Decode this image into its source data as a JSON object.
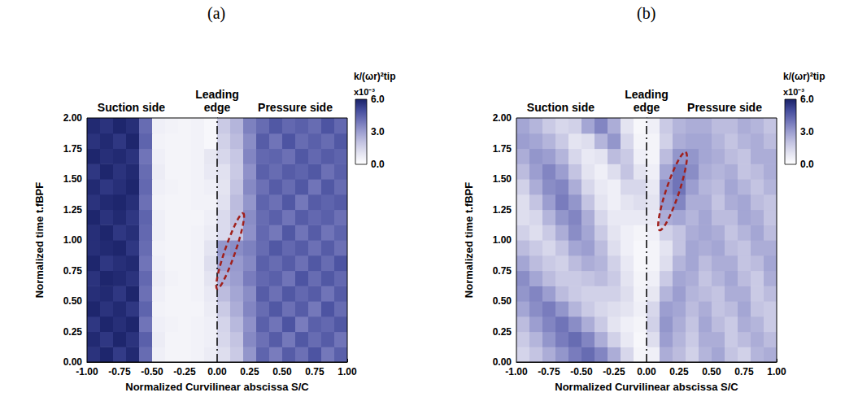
{
  "chart_data": [
    {
      "type": "heatmap",
      "title": "(a)",
      "annotations": [
        "Suction side",
        "Leading edge",
        "Pressure side"
      ],
      "xlabel": "Normalized Curvilinear abscissa S/C",
      "ylabel": "Normalized time t.fBPF",
      "xlim": [
        -1,
        1
      ],
      "ylim": [
        0,
        2
      ],
      "xticks": [
        {
          "value": -1,
          "label": "-1.00"
        },
        {
          "value": -0.75,
          "label": "-0.75"
        },
        {
          "value": -0.5,
          "label": "-0.50"
        },
        {
          "value": -0.25,
          "label": "-0.25"
        },
        {
          "value": 0,
          "label": "0.00"
        },
        {
          "value": 0.25,
          "label": "0.25"
        },
        {
          "value": 0.5,
          "label": "0.50"
        },
        {
          "value": 0.75,
          "label": "0.75"
        },
        {
          "value": 1,
          "label": "1.00"
        }
      ],
      "yticks": [
        {
          "value": 0,
          "label": "0.00"
        },
        {
          "value": 0.25,
          "label": "0.25"
        },
        {
          "value": 0.5,
          "label": "0.50"
        },
        {
          "value": 0.75,
          "label": "0.75"
        },
        {
          "value": 1,
          "label": "1.00"
        },
        {
          "value": 1.25,
          "label": "1.25"
        },
        {
          "value": 1.5,
          "label": "1.50"
        },
        {
          "value": 1.75,
          "label": "1.75"
        },
        {
          "value": 2,
          "label": "2.00"
        }
      ],
      "grid": false,
      "cells": {
        "x_bins": [
          -1,
          -0.9,
          -0.8,
          -0.7,
          -0.6,
          -0.5,
          -0.4,
          -0.3,
          -0.2,
          -0.1,
          0,
          0.1,
          0.2,
          0.3,
          0.4,
          0.5,
          0.6,
          0.7,
          0.8,
          0.9,
          1
        ],
        "y_bins": [
          0,
          0.125,
          0.25,
          0.375,
          0.5,
          0.625,
          0.75,
          0.875,
          1,
          1.125,
          1.25,
          1.375,
          1.5,
          1.625,
          1.75,
          1.875,
          2
        ],
        "values": [
          [
            5.6,
            5.9,
            5.4,
            5.8,
            4.2,
            0.6,
            0.4,
            0.4,
            0.5,
            0.7,
            1.2,
            1.8,
            3.2,
            4.4,
            3.8,
            4.6,
            4.1,
            4.8,
            3.9,
            4.5
          ],
          [
            5.8,
            5.5,
            5.9,
            5.6,
            4.5,
            0.7,
            0.4,
            0.4,
            0.5,
            0.6,
            1.4,
            2.0,
            3.5,
            4.1,
            4.6,
            3.9,
            4.7,
            4.2,
            4.6,
            4.0
          ],
          [
            5.5,
            5.9,
            5.7,
            5.9,
            4.0,
            0.6,
            0.5,
            0.4,
            0.5,
            0.6,
            1.5,
            2.3,
            3.3,
            4.5,
            4.0,
            4.8,
            3.8,
            4.5,
            4.3,
            4.7
          ],
          [
            5.9,
            5.6,
            5.8,
            5.5,
            4.4,
            0.5,
            0.4,
            0.4,
            0.4,
            0.7,
            1.8,
            2.6,
            3.6,
            4.2,
            4.7,
            4.1,
            4.6,
            3.9,
            4.8,
            4.2
          ],
          [
            5.7,
            5.8,
            5.5,
            5.9,
            4.1,
            0.6,
            0.4,
            0.4,
            0.5,
            0.8,
            2.2,
            2.8,
            3.4,
            4.6,
            4.1,
            4.7,
            4.3,
            4.6,
            4.0,
            4.6
          ],
          [
            5.6,
            5.9,
            5.8,
            5.6,
            4.3,
            0.7,
            0.5,
            0.4,
            0.5,
            1.0,
            2.6,
            3.0,
            3.8,
            4.3,
            4.5,
            4.0,
            4.8,
            4.2,
            4.7,
            4.3
          ],
          [
            5.9,
            5.5,
            5.7,
            5.8,
            4.0,
            0.6,
            0.4,
            0.4,
            0.5,
            1.2,
            3.0,
            3.1,
            3.5,
            4.5,
            4.2,
            4.6,
            4.1,
            4.7,
            4.2,
            4.8
          ],
          [
            5.7,
            5.8,
            5.9,
            5.5,
            4.2,
            0.5,
            0.4,
            0.4,
            0.5,
            1.0,
            3.2,
            3.4,
            3.7,
            4.2,
            4.7,
            4.3,
            4.6,
            4.1,
            4.6,
            4.1
          ],
          [
            5.7,
            5.9,
            5.5,
            5.7,
            4.3,
            0.6,
            0.4,
            0.4,
            0.5,
            0.7,
            1.3,
            1.9,
            3.3,
            4.3,
            3.9,
            4.7,
            4.0,
            4.6,
            4.0,
            4.4
          ],
          [
            5.9,
            5.6,
            5.8,
            5.5,
            4.4,
            0.6,
            0.4,
            0.4,
            0.4,
            0.6,
            1.3,
            2.1,
            3.4,
            4.2,
            4.5,
            4.0,
            4.6,
            4.3,
            4.5,
            4.1
          ],
          [
            5.6,
            5.8,
            5.9,
            5.7,
            4.1,
            0.5,
            0.4,
            0.4,
            0.5,
            0.5,
            1.1,
            2.2,
            3.2,
            4.4,
            4.1,
            4.7,
            3.9,
            4.6,
            4.4,
            4.6
          ],
          [
            5.8,
            5.5,
            5.7,
            5.9,
            4.3,
            0.6,
            0.5,
            0.4,
            0.5,
            0.6,
            1.0,
            2.0,
            3.5,
            4.1,
            4.6,
            4.2,
            4.7,
            4.0,
            4.7,
            4.2
          ],
          [
            5.5,
            5.9,
            5.6,
            5.8,
            4.2,
            0.7,
            0.4,
            0.4,
            0.5,
            0.8,
            1.1,
            1.8,
            3.3,
            4.5,
            4.2,
            4.6,
            4.4,
            4.7,
            4.1,
            4.5
          ],
          [
            5.9,
            5.7,
            5.8,
            5.6,
            4.0,
            0.6,
            0.4,
            0.4,
            0.5,
            0.9,
            1.4,
            1.9,
            3.6,
            4.3,
            4.4,
            4.1,
            4.7,
            4.3,
            4.6,
            4.4
          ],
          [
            5.6,
            5.8,
            5.5,
            5.9,
            4.4,
            0.5,
            0.4,
            0.4,
            0.5,
            0.3,
            1.6,
            2.2,
            3.4,
            4.6,
            4.0,
            4.8,
            4.2,
            4.5,
            4.2,
            4.7
          ],
          [
            5.8,
            5.6,
            5.9,
            5.7,
            4.2,
            0.6,
            0.5,
            0.4,
            0.5,
            0.3,
            1.8,
            2.4,
            3.7,
            4.2,
            4.7,
            4.3,
            4.5,
            4.2,
            4.8,
            4.3
          ]
        ]
      },
      "colorbar": {
        "title": "k/(ωr)²tip",
        "exponent_label": "x10⁻³",
        "range": [
          0,
          6
        ],
        "ticks": [
          {
            "value": 0,
            "label": "0.0"
          },
          {
            "value": 3,
            "label": "3.0"
          },
          {
            "value": 6,
            "label": "6.0"
          }
        ],
        "colors": [
          "#ffffff",
          "#e4e4f1",
          "#c4c4e2",
          "#9c9ed0",
          "#7074b8",
          "#444c9c",
          "#1a2268"
        ]
      },
      "leading_edge": {
        "x": 0,
        "line_style": "dashdot",
        "color": "#000000"
      },
      "ellipse": {
        "from": [
          0.0,
          0.6
        ],
        "to": [
          0.2,
          1.22
        ],
        "half_width": 0.04,
        "line_style": "dashed",
        "color": "#a0201c"
      }
    },
    {
      "type": "heatmap",
      "title": "(b)",
      "annotations": [
        "Suction side",
        "Leading edge",
        "Pressure side"
      ],
      "xlabel": "Normalized Curvilinear abscissa S/C",
      "ylabel": "Normalized time t.fBPF",
      "xlim": [
        -1,
        1
      ],
      "ylim": [
        0,
        2
      ],
      "xticks": [
        {
          "value": -1,
          "label": "-1.00"
        },
        {
          "value": -0.75,
          "label": "-0.75"
        },
        {
          "value": -0.5,
          "label": "-0.50"
        },
        {
          "value": -0.25,
          "label": "-0.25"
        },
        {
          "value": 0,
          "label": "0.00"
        },
        {
          "value": 0.25,
          "label": "0.25"
        },
        {
          "value": 0.5,
          "label": "0.50"
        },
        {
          "value": 0.75,
          "label": "0.75"
        },
        {
          "value": 1,
          "label": "1.00"
        }
      ],
      "yticks": [
        {
          "value": 0,
          "label": "0.00"
        },
        {
          "value": 0.25,
          "label": "0.25"
        },
        {
          "value": 0.5,
          "label": "0.50"
        },
        {
          "value": 0.75,
          "label": "0.75"
        },
        {
          "value": 1,
          "label": "1.00"
        },
        {
          "value": 1.25,
          "label": "1.25"
        },
        {
          "value": 1.5,
          "label": "1.50"
        },
        {
          "value": 1.75,
          "label": "1.75"
        },
        {
          "value": 2,
          "label": "2.00"
        }
      ],
      "grid": false,
      "cells": {
        "x_bins": [
          -1,
          -0.9,
          -0.8,
          -0.7,
          -0.6,
          -0.5,
          -0.4,
          -0.3,
          -0.2,
          -0.1,
          0,
          0.1,
          0.2,
          0.3,
          0.4,
          0.5,
          0.6,
          0.7,
          0.8,
          0.9,
          1
        ],
        "y_bins": [
          0,
          0.125,
          0.25,
          0.375,
          0.5,
          0.625,
          0.75,
          0.875,
          1,
          1.125,
          1.25,
          1.375,
          1.5,
          1.625,
          1.75,
          1.875,
          2
        ],
        "values": [
          [
            1.5,
            2.0,
            2.6,
            3.2,
            3.8,
            4.2,
            3.6,
            2.6,
            1.4,
            0.4,
            0.6,
            2.6,
            2.2,
            1.6,
            2.4,
            2.8,
            2.0,
            1.6,
            2.4,
            2.6
          ],
          [
            1.8,
            2.4,
            3.2,
            3.8,
            4.2,
            3.6,
            2.6,
            1.6,
            0.8,
            0.3,
            1.2,
            3.0,
            2.4,
            1.8,
            2.6,
            2.6,
            1.8,
            2.2,
            2.6,
            2.2
          ],
          [
            2.2,
            3.0,
            3.6,
            4.0,
            3.4,
            2.6,
            1.8,
            1.0,
            0.6,
            0.4,
            1.6,
            3.2,
            2.6,
            2.0,
            2.8,
            2.2,
            1.8,
            2.6,
            2.4,
            1.8
          ],
          [
            2.8,
            3.4,
            3.8,
            3.2,
            2.4,
            1.8,
            1.4,
            1.2,
            1.0,
            0.6,
            1.4,
            3.0,
            2.8,
            2.2,
            2.6,
            2.0,
            2.2,
            2.8,
            2.0,
            1.8
          ],
          [
            3.2,
            3.6,
            3.0,
            2.2,
            1.8,
            1.6,
            1.6,
            1.6,
            1.2,
            0.5,
            0.9,
            2.4,
            3.0,
            2.4,
            2.2,
            2.0,
            2.6,
            2.6,
            1.8,
            2.2
          ],
          [
            3.4,
            2.8,
            2.2,
            1.8,
            1.8,
            2.0,
            2.2,
            1.8,
            1.0,
            0.4,
            0.6,
            1.8,
            2.8,
            2.6,
            2.0,
            2.4,
            2.8,
            2.2,
            1.8,
            2.6
          ],
          [
            2.8,
            2.2,
            1.8,
            1.6,
            2.2,
            2.6,
            2.4,
            1.6,
            0.8,
            0.3,
            0.4,
            1.2,
            2.4,
            2.8,
            2.2,
            2.6,
            2.6,
            2.0,
            2.2,
            2.8
          ],
          [
            2.2,
            1.8,
            1.4,
            2.0,
            2.8,
            3.0,
            2.2,
            1.2,
            0.6,
            0.3,
            0.4,
            1.0,
            2.0,
            2.8,
            2.6,
            2.8,
            2.2,
            2.0,
            2.6,
            2.6
          ],
          [
            1.6,
            1.2,
            1.8,
            2.6,
            3.4,
            2.8,
            1.8,
            1.0,
            0.6,
            0.4,
            0.6,
            1.6,
            2.0,
            2.6,
            2.8,
            2.6,
            2.0,
            2.4,
            2.8,
            2.2
          ],
          [
            1.2,
            1.4,
            2.4,
            3.2,
            3.6,
            2.6,
            1.4,
            0.8,
            0.8,
            0.8,
            0.8,
            2.6,
            2.8,
            2.4,
            2.8,
            2.2,
            2.2,
            2.8,
            2.6,
            2.0
          ],
          [
            1.2,
            2.0,
            3.0,
            3.8,
            3.2,
            2.0,
            1.0,
            0.6,
            1.0,
            1.2,
            1.0,
            3.2,
            3.6,
            2.6,
            2.6,
            2.0,
            2.6,
            2.8,
            2.2,
            2.0
          ],
          [
            1.6,
            2.6,
            3.4,
            3.6,
            2.6,
            1.4,
            0.8,
            0.6,
            1.4,
            1.4,
            0.8,
            3.4,
            4.0,
            3.0,
            2.4,
            2.2,
            2.8,
            2.4,
            2.0,
            2.4
          ],
          [
            2.2,
            3.0,
            3.6,
            3.0,
            2.0,
            1.0,
            0.6,
            1.2,
            2.0,
            1.0,
            0.6,
            2.8,
            4.0,
            3.4,
            2.6,
            2.4,
            2.6,
            2.0,
            2.2,
            2.6
          ],
          [
            2.6,
            3.2,
            3.0,
            2.4,
            1.4,
            0.8,
            1.0,
            2.2,
            1.8,
            0.6,
            0.4,
            2.2,
            3.2,
            3.2,
            2.8,
            2.6,
            2.2,
            2.0,
            2.6,
            2.6
          ],
          [
            3.0,
            2.8,
            2.4,
            1.8,
            1.0,
            1.2,
            2.4,
            3.2,
            1.4,
            0.4,
            0.4,
            1.6,
            2.6,
            2.8,
            2.8,
            2.4,
            2.0,
            2.4,
            2.6,
            2.2
          ],
          [
            2.8,
            2.4,
            1.8,
            1.4,
            1.6,
            2.8,
            3.6,
            2.6,
            1.0,
            0.3,
            0.6,
            1.8,
            2.4,
            2.6,
            2.6,
            2.2,
            2.2,
            2.6,
            2.4,
            2.0
          ]
        ]
      },
      "colorbar": {
        "title": "k/(ωr)²tip",
        "exponent_label": "x10⁻³",
        "range": [
          0,
          6
        ],
        "ticks": [
          {
            "value": 0,
            "label": "0.0"
          },
          {
            "value": 3,
            "label": "3.0"
          },
          {
            "value": 6,
            "label": "6.0"
          }
        ],
        "colors": [
          "#ffffff",
          "#e4e4f1",
          "#c4c4e2",
          "#9c9ed0",
          "#7074b8",
          "#444c9c",
          "#1a2268"
        ]
      },
      "leading_edge": {
        "x": 0,
        "line_style": "dashdot",
        "color": "#000000"
      },
      "ellipse": {
        "from": [
          0.1,
          1.08
        ],
        "to": [
          0.3,
          1.72
        ],
        "half_width": 0.05,
        "line_style": "dashed",
        "color": "#a0201c"
      }
    }
  ]
}
